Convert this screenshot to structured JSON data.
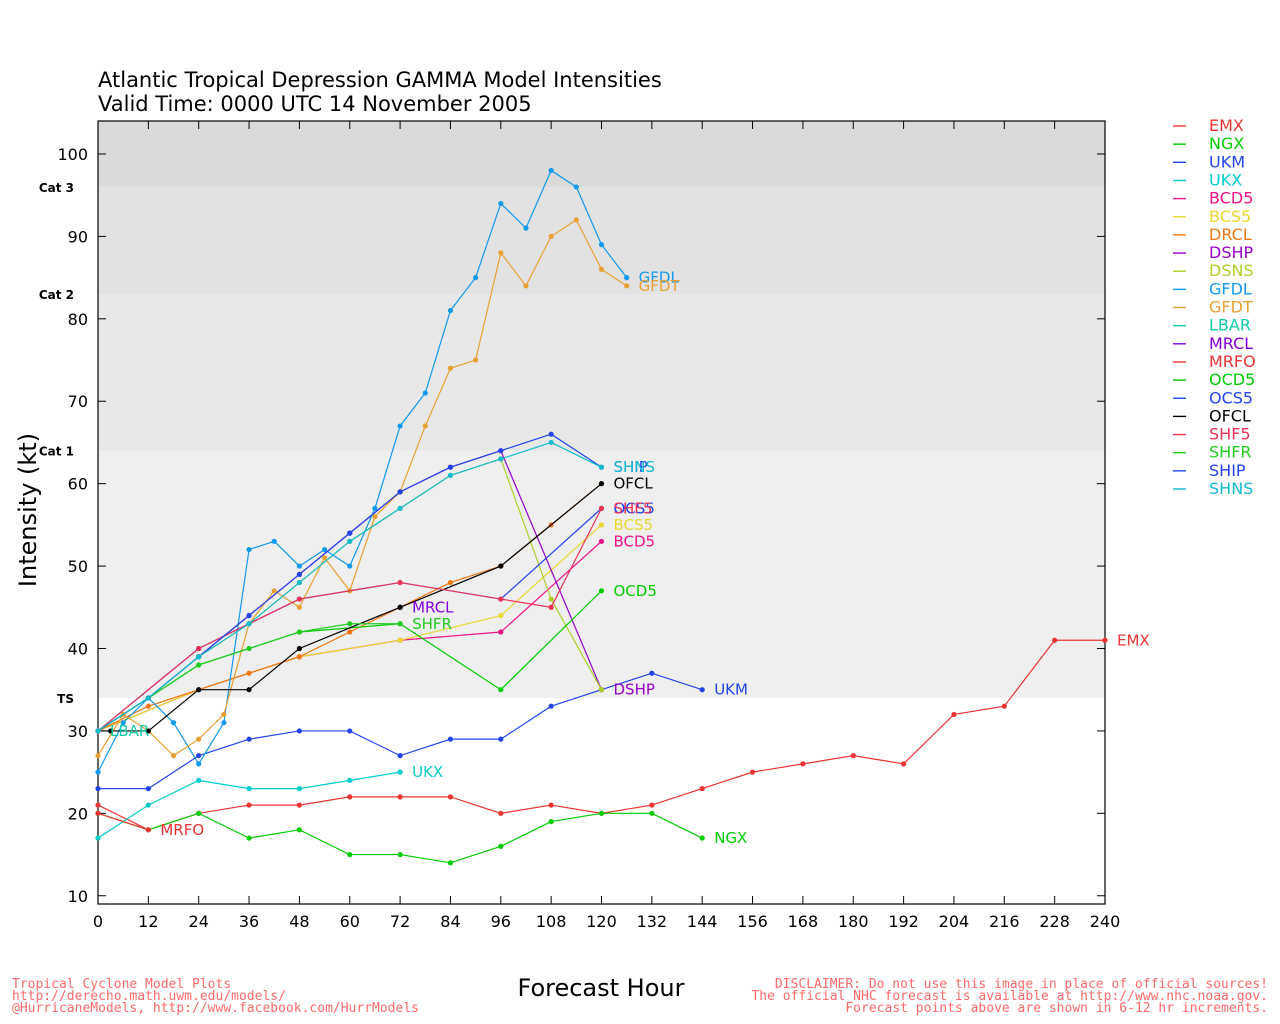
{
  "chart_data": {
    "type": "line",
    "title": "Atlantic Tropical Depression GAMMA Model Intensities",
    "subtitle": "Valid Time: 0000 UTC 14 November 2005",
    "xlabel": "Forecast Hour",
    "ylabel": "Intensity (kt)",
    "xlim": [
      0,
      240
    ],
    "ylim": [
      9,
      104
    ],
    "x_ticks": [
      0,
      12,
      24,
      36,
      48,
      60,
      72,
      84,
      96,
      108,
      120,
      132,
      144,
      156,
      168,
      180,
      192,
      204,
      216,
      228,
      240
    ],
    "y_ticks": [
      10,
      20,
      30,
      40,
      50,
      60,
      70,
      80,
      90,
      100
    ],
    "bands": [
      {
        "from": 34,
        "to": 64,
        "color": "#efefef",
        "label": "TS",
        "label_at": 34
      },
      {
        "from": 64,
        "to": 83,
        "color": "#e8e8e8",
        "label": "Cat 1",
        "label_at": 64
      },
      {
        "from": 83,
        "to": 96,
        "color": "#e2e2e2",
        "label": "Cat 2",
        "label_at": 83
      },
      {
        "from": 96,
        "to": 104,
        "color": "#dadada",
        "label": "Cat 3",
        "label_at": 96
      }
    ],
    "legend_placement": "right",
    "series": [
      {
        "name": "EMX",
        "color": "#ee3333",
        "x": [
          0,
          12,
          24,
          36,
          48,
          60,
          72,
          84,
          96,
          108,
          120,
          132,
          144,
          156,
          168,
          180,
          192,
          204,
          216,
          228,
          240
        ],
        "y": [
          21,
          18,
          20,
          21,
          21,
          22,
          22,
          22,
          20,
          21,
          20,
          21,
          23,
          25,
          26,
          27,
          26,
          32,
          33,
          41,
          41
        ],
        "label": "EMX"
      },
      {
        "name": "NGX",
        "color": "#00cc00",
        "x": [
          0,
          12,
          24,
          36,
          48,
          60,
          72,
          84,
          96,
          108,
          120,
          132,
          144
        ],
        "y": [
          20,
          18,
          20,
          17,
          18,
          15,
          15,
          14,
          16,
          19,
          20,
          20,
          17
        ],
        "label": "NGX"
      },
      {
        "name": "UKM",
        "color": "#2244ee",
        "x": [
          0,
          12,
          24,
          36,
          48,
          60,
          72,
          84,
          96,
          108,
          120,
          132,
          144
        ],
        "y": [
          23,
          23,
          27,
          29,
          30,
          30,
          27,
          29,
          29,
          33,
          35,
          37,
          35
        ],
        "label": "UKM"
      },
      {
        "name": "UKX",
        "color": "#00cccc",
        "x": [
          0,
          12,
          24,
          36,
          48,
          60,
          72
        ],
        "y": [
          17,
          21,
          24,
          23,
          23,
          24,
          25
        ],
        "label": "UKX"
      },
      {
        "name": "BCD5",
        "color": "#ee1188",
        "x": [
          0,
          24,
          48,
          72,
          96,
          120
        ],
        "y": [
          30,
          35,
          39,
          41,
          42,
          53
        ],
        "label": "BCD5"
      },
      {
        "name": "BCS5",
        "color": "#e8d830",
        "x": [
          0,
          24,
          48,
          72,
          96,
          120
        ],
        "y": [
          30,
          35,
          39,
          41,
          44,
          55
        ],
        "label": "BCS5"
      },
      {
        "name": "DRCL",
        "color": "#ee7711",
        "x": [
          0,
          12,
          24,
          36,
          48,
          60,
          72,
          84,
          96,
          108,
          120
        ],
        "y": [
          30,
          33,
          35,
          37,
          39,
          42,
          45,
          48,
          50,
          55,
          60
        ],
        "label": ""
      },
      {
        "name": "DSHP",
        "color": "#9900cc",
        "x": [
          0,
          12,
          24,
          36,
          48,
          60,
          72,
          84,
          96,
          120
        ],
        "y": [
          30,
          34,
          39,
          44,
          49,
          54,
          59,
          62,
          64,
          35
        ],
        "label": "DSHP"
      },
      {
        "name": "DSNS",
        "color": "#aad02a",
        "x": [
          0,
          12,
          24,
          36,
          48,
          60,
          72,
          84,
          96,
          108,
          120
        ],
        "y": [
          30,
          34,
          39,
          43,
          48,
          53,
          57,
          61,
          63,
          46,
          35
        ],
        "label": ""
      },
      {
        "name": "GFDL",
        "color": "#1199ee",
        "x": [
          0,
          6,
          12,
          18,
          24,
          30,
          36,
          42,
          48,
          54,
          60,
          66,
          72,
          78,
          84,
          90,
          96,
          102,
          108,
          114,
          120,
          126
        ],
        "y": [
          25,
          31,
          34,
          31,
          26,
          31,
          52,
          53,
          50,
          52,
          50,
          57,
          67,
          71,
          81,
          85,
          94,
          91,
          98,
          96,
          89,
          85
        ],
        "label": "GFDL"
      },
      {
        "name": "GFDT",
        "color": "#e8a030",
        "x": [
          0,
          6,
          12,
          18,
          24,
          30,
          36,
          42,
          48,
          54,
          60,
          66,
          72,
          78,
          84,
          90,
          96,
          102,
          108,
          114,
          120,
          126
        ],
        "y": [
          27,
          32,
          30,
          27,
          29,
          32,
          43,
          47,
          45,
          51,
          47,
          56,
          59,
          67,
          74,
          75,
          88,
          84,
          90,
          92,
          86,
          84
        ],
        "label": "GFDT"
      },
      {
        "name": "LBAR",
        "color": "#11ccaa",
        "x": [
          0
        ],
        "y": [
          30
        ],
        "label": "LBAR"
      },
      {
        "name": "MRCL",
        "color": "#8800dd",
        "x": [
          72
        ],
        "y": [
          45
        ],
        "label": "MRCL"
      },
      {
        "name": "MRFO",
        "color": "#ee3333",
        "x": [
          0,
          12
        ],
        "y": [
          20,
          18
        ],
        "label": "MRFO"
      },
      {
        "name": "OCD5",
        "color": "#00cc00",
        "x": [
          0,
          24,
          48,
          72,
          96,
          120
        ],
        "y": [
          30,
          38,
          42,
          43,
          35,
          47
        ],
        "label": "OCD5"
      },
      {
        "name": "OCS5",
        "color": "#2244ee",
        "x": [
          0,
          24,
          48,
          72,
          96,
          120
        ],
        "y": [
          30,
          40,
          46,
          48,
          46,
          57
        ],
        "label": "OCS5"
      },
      {
        "name": "OFCL",
        "color": "#000000",
        "x": [
          0,
          3,
          12,
          24,
          36,
          48,
          72,
          96,
          120
        ],
        "y": [
          30,
          30,
          30,
          35,
          35,
          40,
          45,
          50,
          60
        ],
        "label": "OFCL"
      },
      {
        "name": "SHF5",
        "color": "#ee3355",
        "x": [
          0,
          24,
          48,
          72,
          96,
          108,
          120
        ],
        "y": [
          30,
          40,
          46,
          48,
          46,
          45,
          57
        ],
        "label": "SHF5"
      },
      {
        "name": "SHFR",
        "color": "#22cc22",
        "x": [
          0,
          12,
          24,
          36,
          48,
          60,
          72
        ],
        "y": [
          30,
          34,
          38,
          40,
          42,
          43,
          43
        ],
        "label": "SHFR"
      },
      {
        "name": "SHIP",
        "color": "#2244ee",
        "x": [
          0,
          12,
          24,
          36,
          48,
          60,
          72,
          84,
          96,
          108,
          120
        ],
        "y": [
          30,
          34,
          39,
          44,
          49,
          54,
          59,
          62,
          64,
          66,
          62
        ],
        "label": "SHIP"
      },
      {
        "name": "SHNS",
        "color": "#11bbcc",
        "x": [
          0,
          12,
          24,
          36,
          48,
          60,
          72,
          84,
          96,
          108,
          120
        ],
        "y": [
          30,
          34,
          39,
          43,
          48,
          53,
          57,
          61,
          63,
          65,
          62
        ],
        "label": "SHNS"
      }
    ]
  },
  "footer": {
    "left_lines": [
      "Tropical Cyclone Model Plots",
      "http://derecho.math.uwm.edu/models/",
      "@HurricaneModels, http://www.facebook.com/HurrModels"
    ],
    "right_lines": [
      "DISCLAIMER: Do not use this image in place of official sources!",
      "The official NHC forecast is available at http://www.nhc.noaa.gov.",
      "Forecast points above are shown in 6-12 hr increments."
    ]
  }
}
